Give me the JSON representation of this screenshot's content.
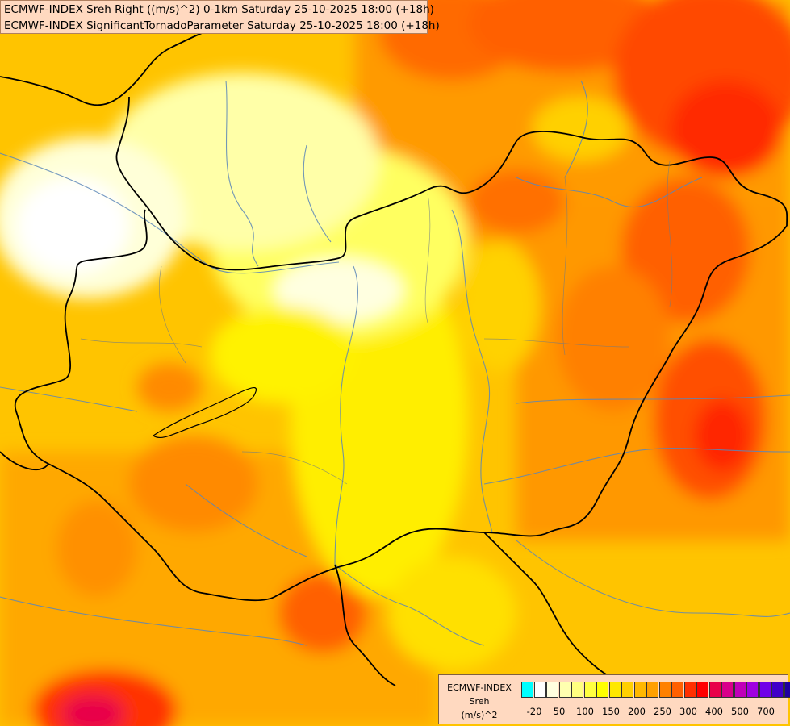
{
  "header": {
    "title_line1": "ECMWF-INDEX Sreh Right ((m/s)^2) 0-1km Saturday 25-10-2025 18:00 (+18h)",
    "title_line2": "ECMWF-INDEX SignificantTornadoParameter Saturday 25-10-2025 18:00 (+18h)"
  },
  "legend": {
    "source": "ECMWF-INDEX",
    "variable": "Sreh",
    "unit": "(m/s)^2",
    "colors": [
      "#00ffff",
      "#ffffff",
      "#ffffe0",
      "#ffffb0",
      "#ffff80",
      "#ffff40",
      "#ffff00",
      "#ffe800",
      "#ffd000",
      "#ffb800",
      "#ffa000",
      "#ff8000",
      "#ff6000",
      "#ff3000",
      "#ff0000",
      "#e8004a",
      "#d8008a",
      "#c000b8",
      "#a000e0",
      "#7000e8",
      "#4000c8",
      "#2000a0",
      "#000080"
    ],
    "labels": [
      "-20",
      "50",
      "100",
      "150",
      "200",
      "250",
      "300",
      "400",
      "500",
      "700"
    ]
  }
}
